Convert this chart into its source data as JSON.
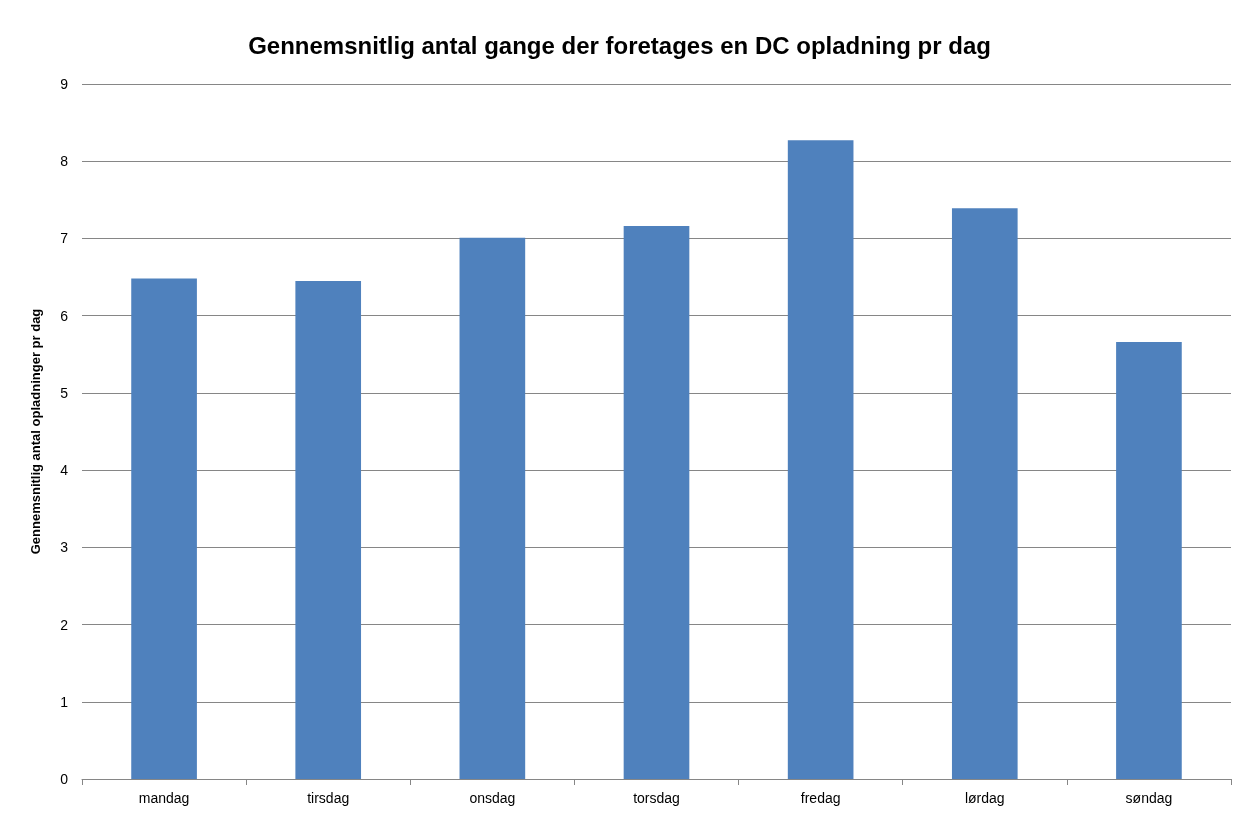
{
  "chart_data": {
    "type": "bar",
    "title": "Gennemsnitlig antal gange der foretages en DC opladning pr dag",
    "ylabel": "Gennemsnitlig antal opladninger pr dag",
    "categories": [
      "mandag",
      "tirsdag",
      "onsdag",
      "torsdag",
      "fredag",
      "lørdag",
      "søndag"
    ],
    "values": [
      6.48,
      6.45,
      7.01,
      7.16,
      8.27,
      7.39,
      5.66
    ],
    "color": "#4f81bd",
    "ylim": [
      0,
      9
    ],
    "yticks": [
      0,
      1,
      2,
      3,
      4,
      5,
      6,
      7,
      8,
      9
    ],
    "grid": "y"
  }
}
